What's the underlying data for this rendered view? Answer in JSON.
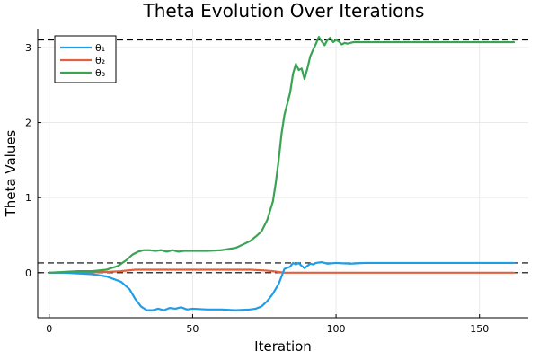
{
  "chart_data": {
    "type": "line",
    "title": "Theta Evolution Over Iterations",
    "xlabel": "Iteration",
    "ylabel": "Theta Values",
    "xlim": [
      -4,
      167
    ],
    "ylim": [
      -0.6,
      3.25
    ],
    "xticks": [
      0,
      50,
      100,
      150
    ],
    "yticks": [
      0,
      1,
      2,
      3
    ],
    "grid": true,
    "legend_position": "top-left",
    "reference_lines": [
      3.1,
      0.13,
      0
    ],
    "series": [
      {
        "name": "θ₁",
        "color": "#1f9ee8",
        "points": [
          [
            0,
            0
          ],
          [
            5,
            0
          ],
          [
            10,
            -0.01
          ],
          [
            15,
            -0.02
          ],
          [
            20,
            -0.05
          ],
          [
            25,
            -0.12
          ],
          [
            28,
            -0.22
          ],
          [
            30,
            -0.35
          ],
          [
            32,
            -0.45
          ],
          [
            34,
            -0.5
          ],
          [
            36,
            -0.5
          ],
          [
            38,
            -0.48
          ],
          [
            40,
            -0.5
          ],
          [
            42,
            -0.47
          ],
          [
            44,
            -0.48
          ],
          [
            46,
            -0.46
          ],
          [
            48,
            -0.49
          ],
          [
            50,
            -0.48
          ],
          [
            55,
            -0.49
          ],
          [
            60,
            -0.49
          ],
          [
            65,
            -0.5
          ],
          [
            70,
            -0.49
          ],
          [
            72,
            -0.48
          ],
          [
            74,
            -0.45
          ],
          [
            76,
            -0.38
          ],
          [
            78,
            -0.28
          ],
          [
            80,
            -0.15
          ],
          [
            82,
            0.05
          ],
          [
            84,
            0.08
          ],
          [
            85,
            0.13
          ],
          [
            86,
            0.11
          ],
          [
            87,
            0.13
          ],
          [
            88,
            0.09
          ],
          [
            89,
            0.06
          ],
          [
            90,
            0.09
          ],
          [
            91,
            0.12
          ],
          [
            92,
            0.11
          ],
          [
            93,
            0.13
          ],
          [
            95,
            0.14
          ],
          [
            97,
            0.12
          ],
          [
            100,
            0.13
          ],
          [
            105,
            0.12
          ],
          [
            110,
            0.13
          ],
          [
            120,
            0.13
          ],
          [
            130,
            0.13
          ],
          [
            140,
            0.13
          ],
          [
            150,
            0.13
          ],
          [
            162,
            0.13
          ]
        ]
      },
      {
        "name": "θ₂",
        "color": "#e2603e",
        "points": [
          [
            0,
            0
          ],
          [
            10,
            0
          ],
          [
            20,
            0.01
          ],
          [
            25,
            0.02
          ],
          [
            30,
            0.04
          ],
          [
            35,
            0.04
          ],
          [
            40,
            0.04
          ],
          [
            50,
            0.04
          ],
          [
            60,
            0.04
          ],
          [
            70,
            0.04
          ],
          [
            75,
            0.03
          ],
          [
            78,
            0.02
          ],
          [
            80,
            0.01
          ],
          [
            82,
            0
          ],
          [
            85,
            0
          ],
          [
            90,
            0
          ],
          [
            100,
            0
          ],
          [
            120,
            0
          ],
          [
            140,
            0
          ],
          [
            162,
            0
          ]
        ]
      },
      {
        "name": "θ₃",
        "color": "#3aa354",
        "points": [
          [
            0,
            0
          ],
          [
            5,
            0.01
          ],
          [
            10,
            0.02
          ],
          [
            15,
            0.02
          ],
          [
            20,
            0.04
          ],
          [
            24,
            0.09
          ],
          [
            27,
            0.17
          ],
          [
            29,
            0.24
          ],
          [
            31,
            0.28
          ],
          [
            33,
            0.3
          ],
          [
            35,
            0.3
          ],
          [
            37,
            0.29
          ],
          [
            39,
            0.3
          ],
          [
            41,
            0.28
          ],
          [
            43,
            0.3
          ],
          [
            45,
            0.28
          ],
          [
            47,
            0.29
          ],
          [
            50,
            0.29
          ],
          [
            55,
            0.29
          ],
          [
            60,
            0.3
          ],
          [
            65,
            0.33
          ],
          [
            70,
            0.42
          ],
          [
            72,
            0.48
          ],
          [
            74,
            0.55
          ],
          [
            76,
            0.7
          ],
          [
            78,
            0.95
          ],
          [
            79,
            1.2
          ],
          [
            80,
            1.5
          ],
          [
            81,
            1.85
          ],
          [
            82,
            2.1
          ],
          [
            83,
            2.25
          ],
          [
            84,
            2.4
          ],
          [
            85,
            2.65
          ],
          [
            86,
            2.78
          ],
          [
            87,
            2.7
          ],
          [
            88,
            2.72
          ],
          [
            89,
            2.58
          ],
          [
            90,
            2.72
          ],
          [
            91,
            2.88
          ],
          [
            92,
            2.97
          ],
          [
            93,
            3.05
          ],
          [
            94,
            3.14
          ],
          [
            95,
            3.08
          ],
          [
            96,
            3.03
          ],
          [
            97,
            3.1
          ],
          [
            98,
            3.13
          ],
          [
            99,
            3.07
          ],
          [
            100,
            3.1
          ],
          [
            101,
            3.08
          ],
          [
            102,
            3.04
          ],
          [
            103,
            3.06
          ],
          [
            104,
            3.05
          ],
          [
            106,
            3.07
          ],
          [
            110,
            3.07
          ],
          [
            120,
            3.07
          ],
          [
            130,
            3.07
          ],
          [
            140,
            3.07
          ],
          [
            150,
            3.07
          ],
          [
            162,
            3.07
          ]
        ]
      }
    ]
  }
}
